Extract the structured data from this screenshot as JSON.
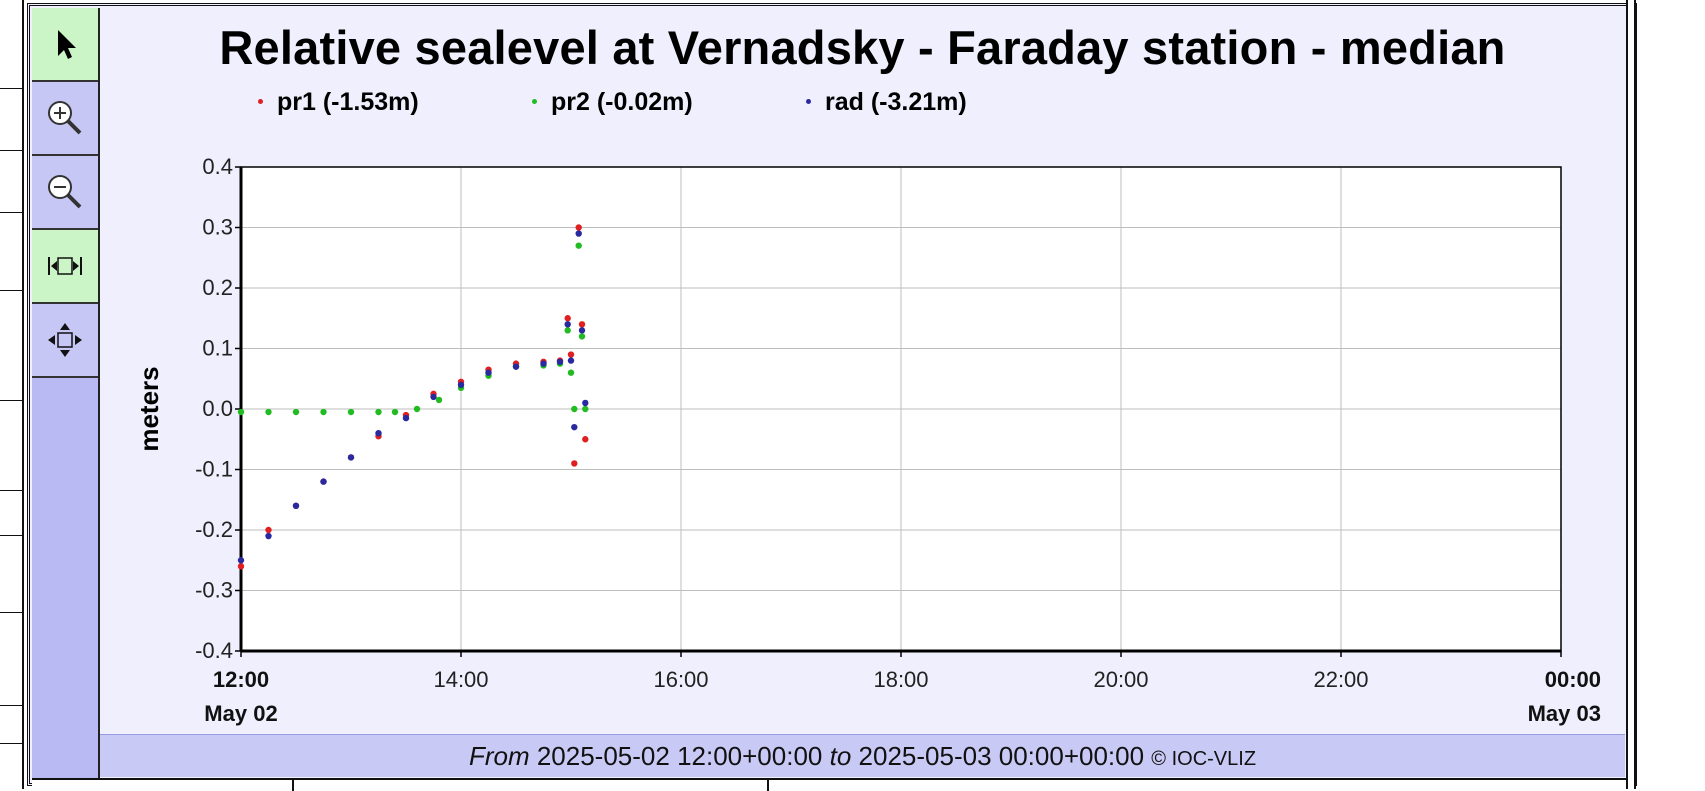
{
  "chart_data": {
    "type": "scatter",
    "title": "Relative sealevel at Vernadsky - Faraday station - median",
    "ylabel": "meters",
    "xlabel": "",
    "ylim": [
      -0.4,
      0.4
    ],
    "xlim_hours": [
      12,
      24
    ],
    "yticks": [
      "0.4",
      "0.3",
      "0.2",
      "0.1",
      "0.0",
      "-0.1",
      "-0.2",
      "-0.3",
      "-0.4"
    ],
    "xticks": [
      {
        "time": "12:00",
        "date": "May 02",
        "bold": true
      },
      {
        "time": "14:00",
        "date": "",
        "bold": false
      },
      {
        "time": "16:00",
        "date": "",
        "bold": false
      },
      {
        "time": "18:00",
        "date": "",
        "bold": false
      },
      {
        "time": "20:00",
        "date": "",
        "bold": false
      },
      {
        "time": "22:00",
        "date": "",
        "bold": false
      },
      {
        "time": "00:00",
        "date": "May 03",
        "bold": true
      }
    ],
    "grid": true,
    "legend_position": "top",
    "series": [
      {
        "name": "pr1 (-1.53m)",
        "color": "#e02020",
        "x_hours": [
          12.0,
          12.25,
          12.5,
          12.75,
          13.0,
          13.25,
          13.5,
          13.75,
          14.0,
          14.25,
          14.5,
          14.75,
          14.9,
          14.97,
          15.0,
          15.03,
          15.07,
          15.1,
          15.13
        ],
        "values": [
          -0.26,
          -0.2,
          -0.16,
          -0.12,
          -0.08,
          -0.045,
          -0.01,
          0.025,
          0.045,
          0.065,
          0.075,
          0.078,
          0.08,
          0.15,
          0.09,
          -0.09,
          0.3,
          0.14,
          -0.05
        ]
      },
      {
        "name": "pr2 (-0.02m)",
        "color": "#22bb22",
        "x_hours": [
          12.0,
          12.25,
          12.5,
          12.75,
          13.0,
          13.25,
          13.4,
          13.6,
          13.8,
          14.0,
          14.25,
          14.5,
          14.75,
          14.9,
          14.97,
          15.0,
          15.03,
          15.07,
          15.1,
          15.13
        ],
        "values": [
          -0.005,
          -0.005,
          -0.005,
          -0.005,
          -0.005,
          -0.005,
          -0.005,
          0.0,
          0.015,
          0.035,
          0.055,
          0.07,
          0.072,
          0.075,
          0.13,
          0.06,
          0.0,
          0.27,
          0.12,
          0.0
        ]
      },
      {
        "name": "rad (-3.21m)",
        "color": "#2a2aa0",
        "x_hours": [
          12.0,
          12.25,
          12.5,
          12.75,
          13.0,
          13.25,
          13.5,
          13.75,
          14.0,
          14.25,
          14.5,
          14.75,
          14.9,
          14.97,
          15.0,
          15.03,
          15.07,
          15.1,
          15.13
        ],
        "values": [
          -0.25,
          -0.21,
          -0.16,
          -0.12,
          -0.08,
          -0.04,
          -0.015,
          0.02,
          0.04,
          0.06,
          0.07,
          0.075,
          0.078,
          0.14,
          0.08,
          -0.03,
          0.29,
          0.13,
          0.01
        ]
      }
    ]
  },
  "footer": {
    "from_label": "From",
    "from_value": "2025-05-02 12:00+00:00",
    "to_label": "to",
    "to_value": "2025-05-03 00:00+00:00",
    "copyright": "© IOC-VLIZ"
  },
  "toolbar": {
    "tools": [
      {
        "name": "pointer-tool",
        "icon": "pointer-icon",
        "active": true
      },
      {
        "name": "zoom-in-tool",
        "icon": "zoom-in-icon",
        "active": false
      },
      {
        "name": "zoom-out-tool",
        "icon": "zoom-out-icon",
        "active": false
      },
      {
        "name": "fit-horizontal-tool",
        "icon": "fit-horizontal-icon",
        "active": true
      },
      {
        "name": "fit-all-tool",
        "icon": "fit-all-icon",
        "active": false
      }
    ]
  }
}
